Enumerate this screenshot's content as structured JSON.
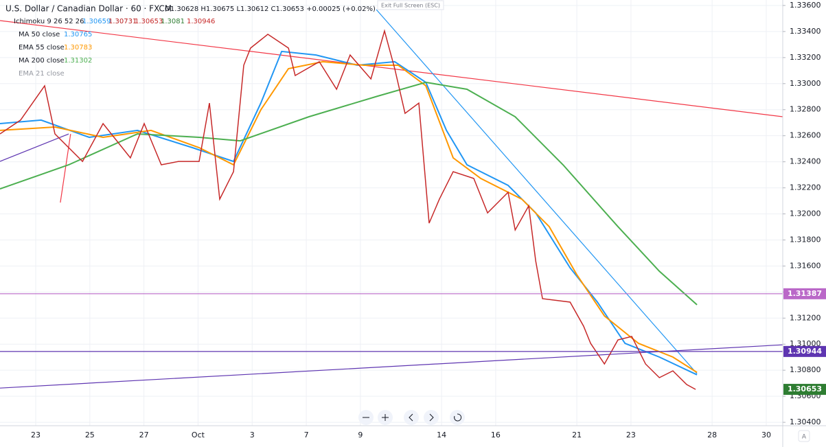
{
  "chart_data": {
    "type": "line",
    "title": "U.S. Dollar / Canadian Dollar · 60 · FXCM",
    "ohlc": "O1.30628 H1.30675 L1.30612 C1.30653 +0.00025 (+0.02%)",
    "xlim": [
      -1.32,
      27.61
    ],
    "ylim": [
      1.30374,
      1.33642
    ],
    "grid": true,
    "xticks": [
      {
        "value": 0,
        "label": "23"
      },
      {
        "value": 2,
        "label": "25"
      },
      {
        "value": 4,
        "label": "27"
      },
      {
        "value": 6,
        "label": "Oct"
      },
      {
        "value": 8,
        "label": "3"
      },
      {
        "value": 10,
        "label": "7"
      },
      {
        "value": 12,
        "label": "9"
      },
      {
        "value": 15,
        "label": "14"
      },
      {
        "value": 17,
        "label": "16"
      },
      {
        "value": 20,
        "label": "21"
      },
      {
        "value": 22,
        "label": "23"
      },
      {
        "value": 25,
        "label": "28"
      },
      {
        "value": 27,
        "label": "30"
      }
    ],
    "yticks": [
      {
        "value": 1.336,
        "label": "1.33600"
      },
      {
        "value": 1.334,
        "label": "1.33400"
      },
      {
        "value": 1.332,
        "label": "1.33200"
      },
      {
        "value": 1.33,
        "label": "1.33000"
      },
      {
        "value": 1.328,
        "label": "1.32800"
      },
      {
        "value": 1.326,
        "label": "1.32600"
      },
      {
        "value": 1.324,
        "label": "1.32400"
      },
      {
        "value": 1.322,
        "label": "1.32200"
      },
      {
        "value": 1.32,
        "label": "1.32000"
      },
      {
        "value": 1.318,
        "label": "1.31800"
      },
      {
        "value": 1.316,
        "label": "1.31600"
      },
      {
        "value": 1.314,
        "label": "1.31400"
      },
      {
        "value": 1.312,
        "label": "1.31200"
      },
      {
        "value": 1.31,
        "label": "1.31000"
      },
      {
        "value": 1.308,
        "label": "1.30800"
      },
      {
        "value": 1.306,
        "label": "1.30600"
      },
      {
        "value": 1.304,
        "label": "1.30400"
      }
    ],
    "price": {
      "color": "#c62828",
      "x": [
        -1.32,
        -0.56,
        0.33,
        0.71,
        1.73,
        2.49,
        3.5,
        4.01,
        4.64,
        5.28,
        6.04,
        6.42,
        6.8,
        7.31,
        7.69,
        7.94,
        8.58,
        9.34,
        9.59,
        10.48,
        11.12,
        11.62,
        12.39,
        12.89,
        13.27,
        13.65,
        14.16,
        14.54,
        14.92,
        15.43,
        16.19,
        16.7,
        17.46,
        17.72,
        18.22,
        18.48,
        18.73,
        19.75,
        20.25,
        20.51,
        21.02,
        21.52,
        22.03,
        22.54,
        23.05,
        23.55,
        24.06,
        24.39
      ],
      "values": [
        1.32614,
        1.3272,
        1.32983,
        1.32614,
        1.32403,
        1.32693,
        1.3243,
        1.32693,
        1.32377,
        1.32403,
        1.32403,
        1.32851,
        1.32113,
        1.32324,
        1.33141,
        1.33273,
        1.33379,
        1.33273,
        1.33062,
        1.33168,
        1.32957,
        1.3322,
        1.33036,
        1.33405,
        1.33115,
        1.32772,
        1.32851,
        1.31929,
        1.32113,
        1.32324,
        1.32272,
        1.32008,
        1.32166,
        1.31876,
        1.32061,
        1.31639,
        1.31349,
        1.31323,
        1.31138,
        1.31006,
        1.30848,
        1.31033,
        1.31059,
        1.30848,
        1.30743,
        1.30795,
        1.3069,
        1.30653
      ]
    },
    "ichimoku": {
      "name": "Ichimoku 9 26 52 26",
      "values": [
        1.30659,
        1.30731,
        1.30653,
        1.3081,
        1.30946
      ]
    },
    "series": [
      {
        "name": "MA 50 close",
        "last": 1.30765,
        "color": "#2196f3",
        "x": [
          -1.32,
          0.2,
          1.98,
          3.76,
          5.79,
          7.31,
          8.32,
          9.09,
          10.36,
          11.88,
          13.27,
          14.42,
          15.18,
          15.94,
          17.46,
          18.48,
          19.75,
          20.76,
          21.78,
          23.05,
          24.44
        ],
        "values": [
          1.32693,
          1.3272,
          1.32588,
          1.32641,
          1.32509,
          1.32403,
          1.32851,
          1.33247,
          1.3322,
          1.33141,
          1.33168,
          1.3301,
          1.32641,
          1.32377,
          1.32219,
          1.32008,
          1.31586,
          1.31323,
          1.31006,
          1.30901,
          1.30765
        ]
      },
      {
        "name": "EMA 55 close",
        "last": 1.30783,
        "color": "#ff9800",
        "x": [
          -1.32,
          0.71,
          2.49,
          4.26,
          6.04,
          7.31,
          8.32,
          9.34,
          10.61,
          12.13,
          13.4,
          14.42,
          15.43,
          16.45,
          17.97,
          18.98,
          20.0,
          21.02,
          22.28,
          23.55,
          24.44
        ],
        "values": [
          1.32641,
          1.32667,
          1.32588,
          1.32641,
          1.32509,
          1.32377,
          1.32799,
          1.33115,
          1.33168,
          1.33141,
          1.33141,
          1.32983,
          1.3243,
          1.32272,
          1.32113,
          1.31902,
          1.31533,
          1.31217,
          1.31006,
          1.30901,
          1.30783
        ]
      },
      {
        "name": "MA 200 close",
        "last": 1.31302,
        "color": "#4caf50",
        "x": [
          -1.32,
          1.22,
          3.76,
          6.04,
          7.56,
          10.1,
          12.64,
          14.42,
          15.94,
          17.72,
          19.49,
          21.52,
          23.05,
          24.44
        ],
        "values": [
          1.32192,
          1.32377,
          1.32614,
          1.32588,
          1.32561,
          1.32746,
          1.32904,
          1.3301,
          1.32957,
          1.32746,
          1.32377,
          1.31902,
          1.3156,
          1.31302
        ]
      },
      {
        "name": "EMA 21 close",
        "color": "#9e9e9e"
      }
    ],
    "drawings": [
      {
        "color": "#f23645",
        "x": [
          -1.32,
          27.61
        ],
        "y": [
          1.33484,
          1.32746
        ]
      },
      {
        "color": "#2196f3",
        "x": [
          12.59,
          24.44
        ],
        "y": [
          1.33568,
          1.30774
        ]
      },
      {
        "color": "#5e35b1",
        "x": [
          -1.32,
          27.61
        ],
        "y": [
          1.30663,
          1.30995
        ]
      },
      {
        "color": "#5e35b1",
        "x": [
          -1.32,
          1.22
        ],
        "y": [
          1.32403,
          1.32614
        ]
      },
      {
        "color": "#f23645",
        "x": [
          1.29,
          0.91
        ],
        "y": [
          1.32614,
          1.32087
        ]
      }
    ],
    "price_lines": [
      {
        "value": 1.31387,
        "color": "#ba68c8"
      },
      {
        "value": 1.30944,
        "color": "#5e35b1"
      },
      {
        "value": 1.30653,
        "color": "#2e7d32"
      }
    ]
  },
  "ui": {
    "exit_fullscreen": "Exit Full Screen (ESC)",
    "scale_button": "A"
  }
}
